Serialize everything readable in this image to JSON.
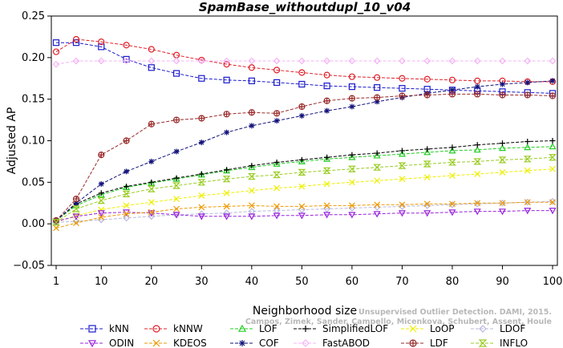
{
  "chart_data": {
    "type": "line",
    "title": "SpamBase_withoutdupl_10_v04",
    "xlabel": "Neighborhood size",
    "ylabel": "Adjusted AP",
    "xlim": [
      1,
      100
    ],
    "ylim": [
      -0.05,
      0.25
    ],
    "xticks": [
      1,
      10,
      20,
      30,
      40,
      50,
      60,
      70,
      80,
      90,
      100
    ],
    "yticks": [
      -0.05,
      0.0,
      0.05,
      0.1,
      0.15,
      0.2,
      0.25
    ],
    "xtick_labels": [
      "1",
      "10",
      "20",
      "30",
      "40",
      "50",
      "60",
      "70",
      "80",
      "90",
      "100"
    ],
    "ytick_labels": [
      "−0.05",
      "0.00",
      "0.05",
      "0.10",
      "0.15",
      "0.20",
      "0.25"
    ],
    "x": [
      1,
      5,
      10,
      15,
      20,
      25,
      30,
      35,
      40,
      45,
      50,
      55,
      60,
      65,
      70,
      75,
      80,
      85,
      90,
      95,
      100
    ],
    "legend_position": "bottom",
    "series": [
      {
        "name": "kNN",
        "color": "#1a1acc",
        "marker": "square",
        "values": [
          0.218,
          0.218,
          0.213,
          0.198,
          0.188,
          0.181,
          0.175,
          0.173,
          0.172,
          0.17,
          0.168,
          0.166,
          0.165,
          0.164,
          0.163,
          0.162,
          0.161,
          0.16,
          0.159,
          0.158,
          0.157
        ]
      },
      {
        "name": "kNNW",
        "color": "#e0202a",
        "marker": "circle",
        "values": [
          0.207,
          0.222,
          0.219,
          0.215,
          0.21,
          0.203,
          0.197,
          0.192,
          0.188,
          0.185,
          0.182,
          0.179,
          0.177,
          0.176,
          0.175,
          0.174,
          0.173,
          0.172,
          0.172,
          0.171,
          0.171
        ]
      },
      {
        "name": "LOF",
        "color": "#22cc22",
        "marker": "triangle-up",
        "values": [
          0.004,
          0.022,
          0.035,
          0.044,
          0.049,
          0.054,
          0.059,
          0.064,
          0.068,
          0.072,
          0.075,
          0.078,
          0.08,
          0.082,
          0.084,
          0.086,
          0.088,
          0.089,
          0.091,
          0.092,
          0.093
        ]
      },
      {
        "name": "SimplifiedLOF",
        "color": "#000000",
        "marker": "plus",
        "values": [
          0.004,
          0.024,
          0.037,
          0.045,
          0.05,
          0.055,
          0.06,
          0.065,
          0.07,
          0.074,
          0.077,
          0.08,
          0.083,
          0.085,
          0.088,
          0.09,
          0.092,
          0.095,
          0.097,
          0.099,
          0.1
        ]
      },
      {
        "name": "LoOP",
        "color": "#eeee00",
        "marker": "x",
        "values": [
          0.002,
          0.01,
          0.017,
          0.022,
          0.026,
          0.03,
          0.034,
          0.037,
          0.04,
          0.043,
          0.045,
          0.048,
          0.05,
          0.052,
          0.054,
          0.056,
          0.058,
          0.06,
          0.062,
          0.064,
          0.066
        ]
      },
      {
        "name": "LDOF",
        "color": "#b8b8dd",
        "marker": "diamond",
        "values": [
          0.002,
          0.003,
          0.005,
          0.007,
          0.009,
          0.011,
          0.012,
          0.013,
          0.015,
          0.016,
          0.017,
          0.018,
          0.019,
          0.02,
          0.021,
          0.022,
          0.023,
          0.024,
          0.025,
          0.026,
          0.027
        ]
      },
      {
        "name": "ODIN",
        "color": "#9922dd",
        "marker": "triangle-down",
        "values": [
          0.003,
          0.009,
          0.013,
          0.014,
          0.013,
          0.011,
          0.009,
          0.009,
          0.009,
          0.01,
          0.01,
          0.011,
          0.011,
          0.012,
          0.013,
          0.013,
          0.014,
          0.015,
          0.015,
          0.016,
          0.016
        ]
      },
      {
        "name": "KDEOS",
        "color": "#ee9900",
        "marker": "x",
        "values": [
          -0.005,
          0.001,
          0.008,
          0.012,
          0.014,
          0.018,
          0.02,
          0.021,
          0.022,
          0.021,
          0.021,
          0.022,
          0.022,
          0.023,
          0.023,
          0.024,
          0.024,
          0.025,
          0.025,
          0.026,
          0.026
        ]
      },
      {
        "name": "COF",
        "color": "#11117a",
        "marker": "star",
        "values": [
          0.004,
          0.025,
          0.048,
          0.063,
          0.075,
          0.087,
          0.098,
          0.11,
          0.118,
          0.124,
          0.13,
          0.136,
          0.141,
          0.147,
          0.152,
          0.157,
          0.161,
          0.165,
          0.168,
          0.17,
          0.172
        ]
      },
      {
        "name": "FastABOD",
        "color": "#f4b4f4",
        "marker": "diamond",
        "values": [
          0.192,
          0.196,
          0.196,
          0.196,
          0.196,
          0.196,
          0.196,
          0.196,
          0.196,
          0.196,
          0.196,
          0.196,
          0.196,
          0.196,
          0.196,
          0.196,
          0.196,
          0.196,
          0.196,
          0.196,
          0.196
        ]
      },
      {
        "name": "LDF",
        "color": "#992a2a",
        "marker": "circle-plus",
        "values": [
          0.004,
          0.03,
          0.083,
          0.1,
          0.12,
          0.125,
          0.127,
          0.132,
          0.134,
          0.133,
          0.141,
          0.148,
          0.151,
          0.152,
          0.154,
          0.155,
          0.156,
          0.156,
          0.155,
          0.155,
          0.154
        ]
      },
      {
        "name": "INFLO",
        "color": "#99cc22",
        "marker": "hourglass",
        "values": [
          0.002,
          0.018,
          0.028,
          0.036,
          0.042,
          0.046,
          0.05,
          0.054,
          0.057,
          0.059,
          0.062,
          0.064,
          0.066,
          0.068,
          0.07,
          0.072,
          0.074,
          0.075,
          0.077,
          0.078,
          0.08
        ]
      }
    ],
    "annotation": "Campos, Zimek, Sander, Campello, Micenkova, Schubert, Assent, Houle",
    "annotation_header": "Unsupervised Outlier Detection. DAMI, 2015."
  }
}
